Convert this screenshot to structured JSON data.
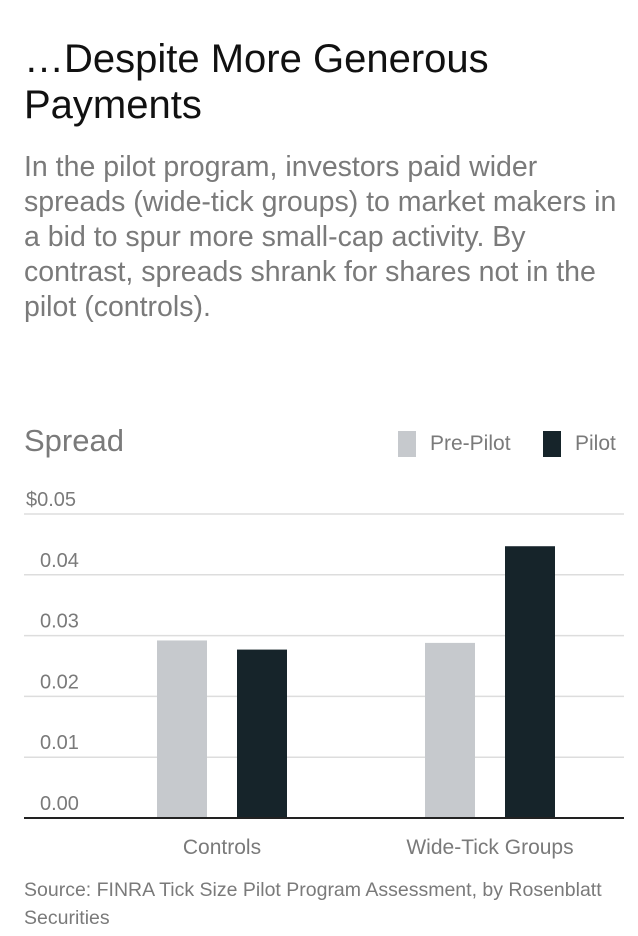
{
  "header": {
    "title": "…Despite More Generous Payments",
    "subtitle": "In the pilot program, investors paid wider spreads (wide-tick groups) to market makers in a bid to spur more small-cap activity. By contrast, spreads shrank for shares not in the pilot (controls)."
  },
  "colors": {
    "pre_pilot": "#c6c9cd",
    "pilot": "#16242a",
    "gridline": "#dddddd",
    "axis": "#222222"
  },
  "chart_data": {
    "type": "bar",
    "ylabel": "Spread",
    "categories": [
      "Controls",
      "Wide-Tick Groups"
    ],
    "series": [
      {
        "name": "Pre-Pilot",
        "values": [
          0.0292,
          0.0288
        ]
      },
      {
        "name": "Pilot",
        "values": [
          0.0277,
          0.0447
        ]
      }
    ],
    "ylim": [
      0,
      0.05
    ],
    "yticks": [
      {
        "value": 0.0,
        "label": "0.00"
      },
      {
        "value": 0.01,
        "label": "0.01"
      },
      {
        "value": 0.02,
        "label": "0.02"
      },
      {
        "value": 0.03,
        "label": "0.03"
      },
      {
        "value": 0.04,
        "label": "0.04"
      },
      {
        "value": 0.05,
        "label": "$0.05"
      }
    ],
    "grid": true,
    "legend_position": "top-right"
  },
  "footer": {
    "source": "Source: FINRA Tick Size Pilot Program Assessment, by Rosenblatt Securities"
  }
}
